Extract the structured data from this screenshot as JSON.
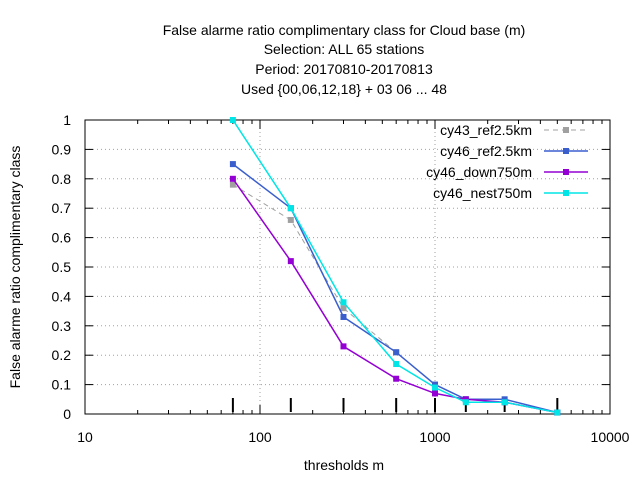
{
  "chart_data": {
    "type": "line",
    "title_lines": [
      "False alarme ratio complimentary class  for Cloud base (m)",
      "Selection: ALL      65 stations",
      "Period: 20170810-20170813",
      "Used {00,06,12,18} + 03 06 ... 48"
    ],
    "xlabel": "thresholds m",
    "ylabel": "False alarme ratio complimentary class",
    "x_scale": "log",
    "xlim": [
      10,
      10000
    ],
    "ylim": [
      0,
      1
    ],
    "x_ticks": [
      10,
      100,
      1000,
      10000
    ],
    "x_tick_labels": [
      "10",
      "100",
      "1000",
      "10000"
    ],
    "y_ticks": [
      0,
      0.1,
      0.2,
      0.3,
      0.4,
      0.5,
      0.6,
      0.7,
      0.8,
      0.9,
      1
    ],
    "y_tick_labels": [
      "0",
      "0.1",
      "0.2",
      "0.3",
      "0.4",
      "0.5",
      "0.6",
      "0.7",
      "0.8",
      "0.9",
      "1"
    ],
    "grid": true,
    "legend_position": "top-right",
    "thresholds": [
      70,
      150,
      300,
      600,
      1000,
      1500,
      2500,
      5000
    ],
    "series": [
      {
        "name": "cy43_ref2.5km",
        "color": "#a0a0a0",
        "dash": true,
        "values": [
          0.78,
          0.66,
          0.36,
          0.21,
          0.1,
          0.05,
          0.04,
          0.005
        ]
      },
      {
        "name": "cy46_ref2.5km",
        "color": "#3a5fcd",
        "dash": false,
        "values": [
          0.85,
          0.7,
          0.33,
          0.21,
          0.1,
          0.05,
          0.05,
          0.005
        ]
      },
      {
        "name": "cy46_down750m",
        "color": "#9400d3",
        "dash": false,
        "values": [
          0.8,
          0.52,
          0.23,
          0.12,
          0.07,
          0.05,
          0.04,
          0.005
        ]
      },
      {
        "name": "cy46_nest750m",
        "color": "#00e5e5",
        "dash": false,
        "values": [
          1.0,
          0.7,
          0.38,
          0.17,
          0.09,
          0.04,
          0.04,
          0.005
        ]
      }
    ]
  }
}
